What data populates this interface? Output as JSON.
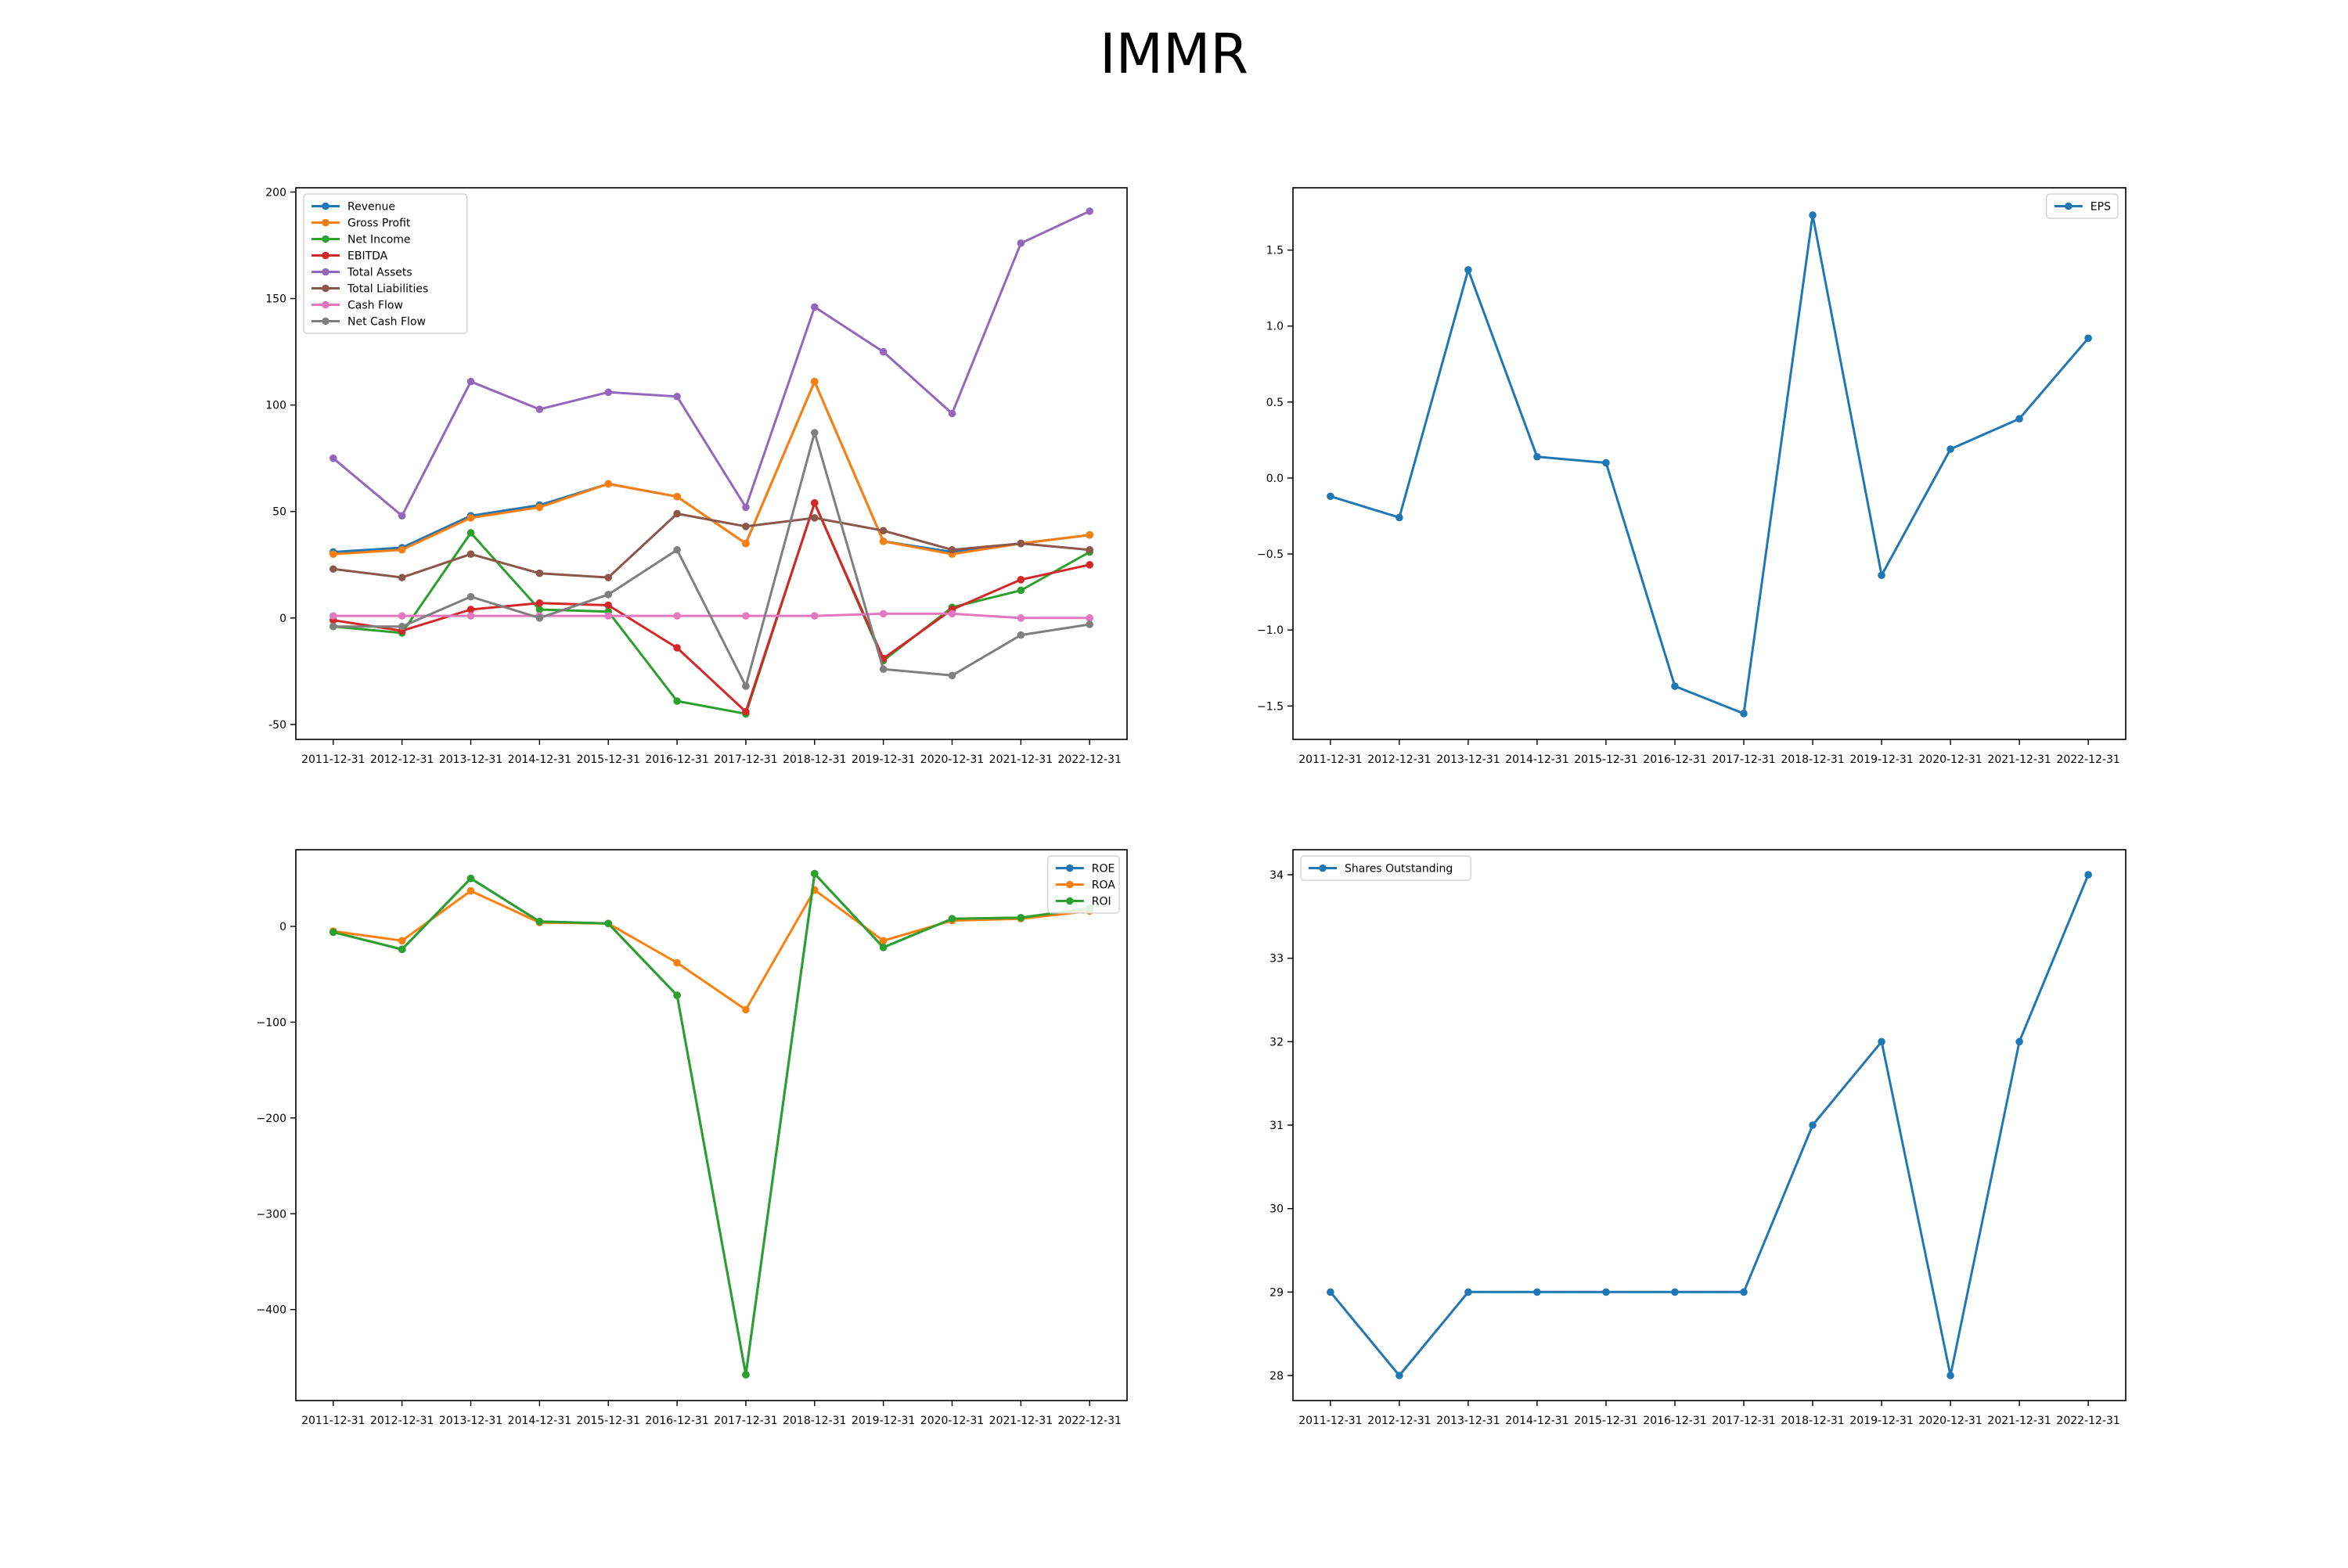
{
  "figure": {
    "title": "IMMR"
  },
  "colors": {
    "c0": "#1f77b4",
    "c1": "#ff7f0e",
    "c2": "#2ca02c",
    "c3": "#d62728",
    "c4": "#9467bd",
    "c5": "#8c564b",
    "c6": "#e377c2",
    "c7": "#7f7f7f"
  },
  "chart_data": [
    {
      "type": "line",
      "id": "financials",
      "title": "",
      "xlabel": "",
      "ylabel": "",
      "categories": [
        "2011-12-31",
        "2012-12-31",
        "2013-12-31",
        "2014-12-31",
        "2015-12-31",
        "2016-12-31",
        "2017-12-31",
        "2018-12-31",
        "2019-12-31",
        "2020-12-31",
        "2021-12-31",
        "2022-12-31"
      ],
      "ylim": [
        -57,
        202
      ],
      "yticks": [
        -50,
        0,
        50,
        100,
        150,
        200
      ],
      "legend": "upper left",
      "grid": false,
      "series": [
        {
          "name": "Revenue",
          "color": "#1f77b4",
          "values": [
            31,
            33,
            48,
            53,
            63,
            57,
            35,
            111,
            36,
            31,
            35,
            39
          ]
        },
        {
          "name": "Gross Profit",
          "color": "#ff7f0e",
          "values": [
            30,
            32,
            47,
            52,
            63,
            57,
            35,
            111,
            36,
            30,
            35,
            39
          ]
        },
        {
          "name": "Net Income",
          "color": "#2ca02c",
          "values": [
            -4,
            -7,
            40,
            4,
            3,
            -39,
            -45,
            54,
            -20,
            5,
            13,
            31
          ]
        },
        {
          "name": "EBITDA",
          "color": "#d62728",
          "values": [
            -1,
            -6,
            4,
            7,
            6,
            -14,
            -44,
            54,
            -19,
            4,
            18,
            25
          ]
        },
        {
          "name": "Total Assets",
          "color": "#9467bd",
          "values": [
            75,
            48,
            111,
            98,
            106,
            104,
            52,
            146,
            125,
            96,
            176,
            191
          ]
        },
        {
          "name": "Total Liabilities",
          "color": "#8c564b",
          "values": [
            23,
            19,
            30,
            21,
            19,
            49,
            43,
            47,
            41,
            32,
            35,
            32
          ]
        },
        {
          "name": "Cash Flow",
          "color": "#e377c2",
          "values": [
            1,
            1,
            1,
            1,
            1,
            1,
            1,
            1,
            2,
            2,
            0,
            0
          ]
        },
        {
          "name": "Net Cash Flow",
          "color": "#7f7f7f",
          "values": [
            -4,
            -4,
            10,
            0,
            11,
            32,
            -32,
            87,
            -24,
            -27,
            -8,
            -3
          ]
        }
      ]
    },
    {
      "type": "line",
      "id": "eps",
      "title": "",
      "xlabel": "",
      "ylabel": "",
      "categories": [
        "2011-12-31",
        "2012-12-31",
        "2013-12-31",
        "2014-12-31",
        "2015-12-31",
        "2016-12-31",
        "2017-12-31",
        "2018-12-31",
        "2019-12-31",
        "2020-12-31",
        "2021-12-31",
        "2022-12-31"
      ],
      "ylim": [
        -1.72,
        1.91
      ],
      "yticks": [
        -1.5,
        -1.0,
        -0.5,
        0.0,
        0.5,
        1.0,
        1.5
      ],
      "ytick_labels": [
        "−1.5",
        "−1.0",
        "−0.5",
        "0.0",
        "0.5",
        "1.0",
        "1.5"
      ],
      "legend": "upper right",
      "grid": false,
      "series": [
        {
          "name": "EPS",
          "color": "#1f77b4",
          "values": [
            -0.12,
            -0.26,
            1.37,
            0.14,
            0.1,
            -1.37,
            -1.55,
            1.73,
            -0.64,
            0.19,
            0.39,
            0.92
          ]
        }
      ]
    },
    {
      "type": "line",
      "id": "returns",
      "title": "",
      "xlabel": "",
      "ylabel": "",
      "categories": [
        "2011-12-31",
        "2012-12-31",
        "2013-12-31",
        "2014-12-31",
        "2015-12-31",
        "2016-12-31",
        "2017-12-31",
        "2018-12-31",
        "2019-12-31",
        "2020-12-31",
        "2021-12-31",
        "2022-12-31"
      ],
      "ylim": [
        -495,
        80
      ],
      "yticks": [
        -400,
        -300,
        -200,
        -100,
        0
      ],
      "ytick_labels": [
        "−400",
        "−300",
        "−200",
        "−100",
        "0"
      ],
      "legend": "upper right",
      "grid": false,
      "series": [
        {
          "name": "ROE",
          "color": "#1f77b4",
          "values": [
            -6,
            -24,
            50,
            5,
            3,
            -72,
            -468,
            55,
            -22,
            8,
            9,
            19
          ]
        },
        {
          "name": "ROA",
          "color": "#ff7f0e",
          "values": [
            -5,
            -15,
            37,
            4,
            3,
            -38,
            -87,
            38,
            -15,
            6,
            8,
            16
          ]
        },
        {
          "name": "ROI",
          "color": "#2ca02c",
          "values": [
            -6,
            -24,
            50,
            5,
            3,
            -72,
            -468,
            55,
            -22,
            8,
            9,
            19
          ]
        }
      ]
    },
    {
      "type": "line",
      "id": "shares",
      "title": "",
      "xlabel": "",
      "ylabel": "",
      "categories": [
        "2011-12-31",
        "2012-12-31",
        "2013-12-31",
        "2014-12-31",
        "2015-12-31",
        "2016-12-31",
        "2017-12-31",
        "2018-12-31",
        "2019-12-31",
        "2020-12-31",
        "2021-12-31",
        "2022-12-31"
      ],
      "ylim": [
        27.7,
        34.3
      ],
      "yticks": [
        28,
        29,
        30,
        31,
        32,
        33,
        34
      ],
      "legend": "upper left",
      "grid": false,
      "series": [
        {
          "name": "Shares Outstanding",
          "color": "#1f77b4",
          "values": [
            29,
            28,
            29,
            29,
            29,
            29,
            29,
            31,
            32,
            28,
            32,
            34
          ]
        }
      ]
    }
  ]
}
